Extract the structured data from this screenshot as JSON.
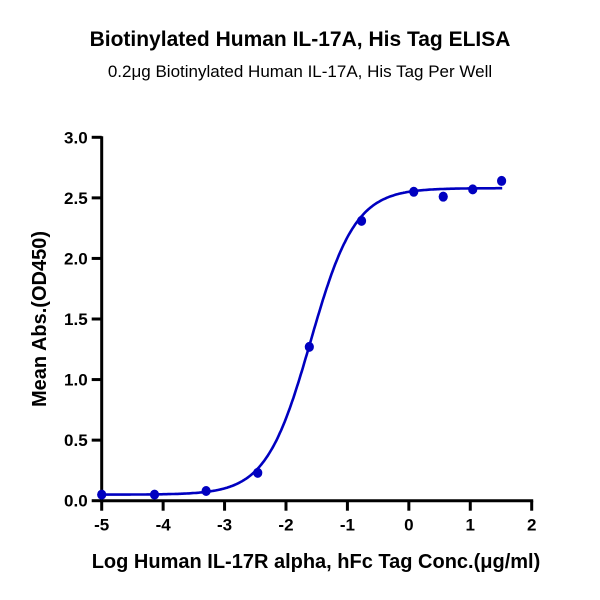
{
  "chart_data": {
    "type": "scatter",
    "title": "Biotinylated Human IL-17A, His Tag ELISA",
    "subtitle": "0.2μg Biotinylated Human IL-17A, His Tag Per Well",
    "xlabel": "Log Human IL-17R alpha, hFc Tag Conc.(μg/ml)",
    "ylabel": "Mean Abs.(OD450)",
    "xlim": [
      -5,
      2
    ],
    "ylim": [
      0,
      3.0
    ],
    "xticks": [
      "-5",
      "-4",
      "-3",
      "-2",
      "-1",
      "0",
      "1",
      "2"
    ],
    "yticks": [
      "0.0",
      "0.5",
      "1.0",
      "1.5",
      "2.0",
      "2.5",
      "3.0"
    ],
    "grid": false,
    "color": "#0000c0",
    "series": [
      {
        "points": [
          {
            "x": -5.0,
            "y": 0.05
          },
          {
            "x": -4.14,
            "y": 0.05
          },
          {
            "x": -3.3,
            "y": 0.08
          },
          {
            "x": -2.46,
            "y": 0.23
          },
          {
            "x": -1.62,
            "y": 1.27
          },
          {
            "x": -0.77,
            "y": 2.31
          },
          {
            "x": 0.08,
            "y": 2.55
          },
          {
            "x": 0.56,
            "y": 2.51
          },
          {
            "x": 1.04,
            "y": 2.57
          },
          {
            "x": 1.51,
            "y": 2.64
          }
        ],
        "fit": {
          "model": "4PL",
          "bottom": 0.05,
          "top": 2.58,
          "logEC50": -1.6,
          "hill": 1.2
        }
      }
    ]
  }
}
